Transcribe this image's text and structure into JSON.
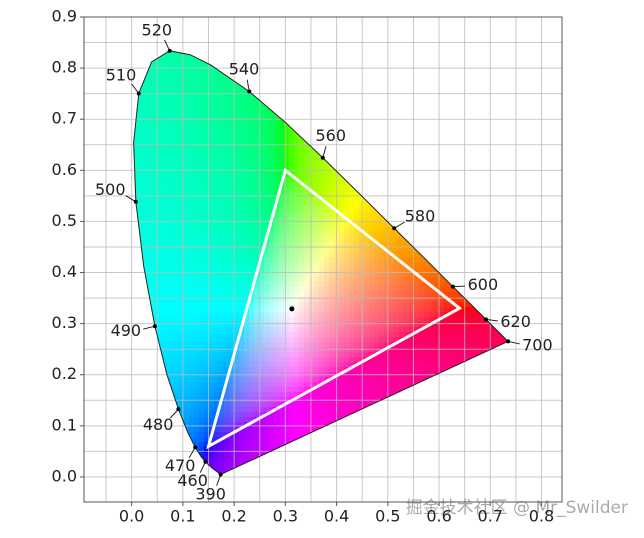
{
  "chart_data": {
    "type": "chromaticity",
    "xlim": [
      -0.093,
      0.84
    ],
    "ylim": [
      -0.049,
      0.9
    ],
    "xticks": [
      {
        "value": 0,
        "label": "0.0"
      },
      {
        "value": 0.1,
        "label": "0.1"
      },
      {
        "value": 0.2,
        "label": "0.2"
      },
      {
        "value": 0.3,
        "label": "0.3"
      },
      {
        "value": 0.4,
        "label": "0.4"
      },
      {
        "value": 0.5,
        "label": "0.5"
      },
      {
        "value": 0.6,
        "label": "0.6"
      },
      {
        "value": 0.7,
        "label": "0.7"
      },
      {
        "value": 0.8,
        "label": "0.8"
      }
    ],
    "yticks": [
      {
        "value": 0,
        "label": "0.0"
      },
      {
        "value": 0.1,
        "label": "0.1"
      },
      {
        "value": 0.2,
        "label": "0.2"
      },
      {
        "value": 0.3,
        "label": "0.3"
      },
      {
        "value": 0.4,
        "label": "0.4"
      },
      {
        "value": 0.5,
        "label": "0.5"
      },
      {
        "value": 0.6,
        "label": "0.6"
      },
      {
        "value": 0.7,
        "label": "0.7"
      },
      {
        "value": 0.8,
        "label": "0.8"
      },
      {
        "value": 0.9,
        "label": "0.9"
      }
    ],
    "grid": true,
    "locus": {
      "labels": [
        "390",
        null,
        "460",
        null,
        "470",
        null,
        "480",
        null,
        "490",
        null,
        "500",
        null,
        "510",
        null,
        "520",
        null,
        null,
        "540",
        null,
        "560",
        null,
        "580",
        null,
        "600",
        null,
        "620",
        null,
        "700"
      ],
      "x": [
        0.1738,
        0.1566,
        0.144,
        0.1355,
        0.1241,
        0.1096,
        0.0913,
        0.0687,
        0.0454,
        0.0235,
        0.0082,
        0.0039,
        0.0139,
        0.0389,
        0.0743,
        0.1142,
        0.1547,
        0.2296,
        0.3016,
        0.3731,
        0.4441,
        0.5125,
        0.5752,
        0.627,
        0.6658,
        0.6915,
        0.719,
        0.7347
      ],
      "y": [
        0.0049,
        0.0177,
        0.0297,
        0.0399,
        0.0578,
        0.0868,
        0.1327,
        0.2007,
        0.295,
        0.4127,
        0.5384,
        0.6548,
        0.7502,
        0.812,
        0.8338,
        0.8262,
        0.8059,
        0.7543,
        0.6923,
        0.6245,
        0.5547,
        0.4866,
        0.4242,
        0.3725,
        0.334,
        0.3083,
        0.2809,
        0.2653
      ]
    },
    "gamut": {
      "color": "#ffffff",
      "x": [
        0.64,
        0.3,
        0.15
      ],
      "y": [
        0.33,
        0.6,
        0.06
      ]
    },
    "white_point": {
      "x": 0.3127,
      "y": 0.329,
      "color": "#000000"
    },
    "watermark": "掘金技术社区 @ Mr_Swilder"
  }
}
